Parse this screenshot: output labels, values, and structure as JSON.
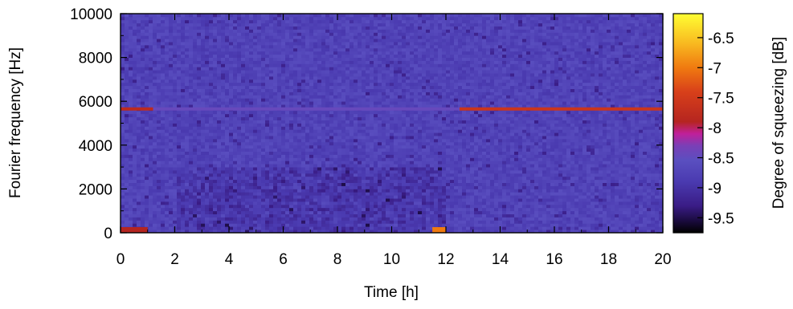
{
  "chart_data": {
    "type": "heatmap",
    "title": "",
    "xlabel": "Time [h]",
    "ylabel": "Fourier frequency [Hz]",
    "xlim": [
      0,
      20
    ],
    "ylim": [
      0,
      10000
    ],
    "xticks": [
      0,
      2,
      4,
      6,
      8,
      10,
      12,
      14,
      16,
      18,
      20
    ],
    "yticks": [
      0,
      2000,
      4000,
      6000,
      8000,
      10000
    ],
    "colorbar": {
      "label": "Degree of squeezing [dB]",
      "range": [
        -9.75,
        -6.1
      ],
      "ticks": [
        -9.5,
        -9,
        -8.5,
        -8,
        -7.5,
        -7,
        -6.5
      ],
      "colormap": [
        {
          "value": -9.75,
          "color": "#000000"
        },
        {
          "value": -9.55,
          "color": "#1a0b3f"
        },
        {
          "value": -9.3,
          "color": "#3a1c86"
        },
        {
          "value": -8.9,
          "color": "#4a3ab0"
        },
        {
          "value": -8.55,
          "color": "#5a4fc0"
        },
        {
          "value": -8.3,
          "color": "#7a3fb6"
        },
        {
          "value": -8.1,
          "color": "#c0209a"
        },
        {
          "value": -7.9,
          "color": "#b52520"
        },
        {
          "value": -7.4,
          "color": "#d8401a"
        },
        {
          "value": -7.0,
          "color": "#f07a10"
        },
        {
          "value": -6.6,
          "color": "#f8b820"
        },
        {
          "value": -6.1,
          "color": "#ffff33"
        }
      ]
    },
    "background_level_db": -8.75,
    "features": [
      {
        "name": "strong line",
        "frequency_hz": 5650,
        "time_range_h": [
          0,
          1.2
        ],
        "level_db": -7.8
      },
      {
        "name": "strong line",
        "frequency_hz": 5650,
        "time_range_h": [
          12.5,
          20
        ],
        "level_db": -7.6
      },
      {
        "name": "weak line",
        "frequency_hz": 5650,
        "time_range_h": [
          1.2,
          12.5
        ],
        "level_db": -8.45
      },
      {
        "name": "low frequency hotspot",
        "frequency_hz": 0,
        "time_range_h": [
          11.5,
          12.0
        ],
        "level_db": -7.0
      },
      {
        "name": "low frequency edge",
        "frequency_hz": 0,
        "time_range_h": [
          0,
          1.0
        ],
        "level_db": -7.9
      }
    ]
  }
}
